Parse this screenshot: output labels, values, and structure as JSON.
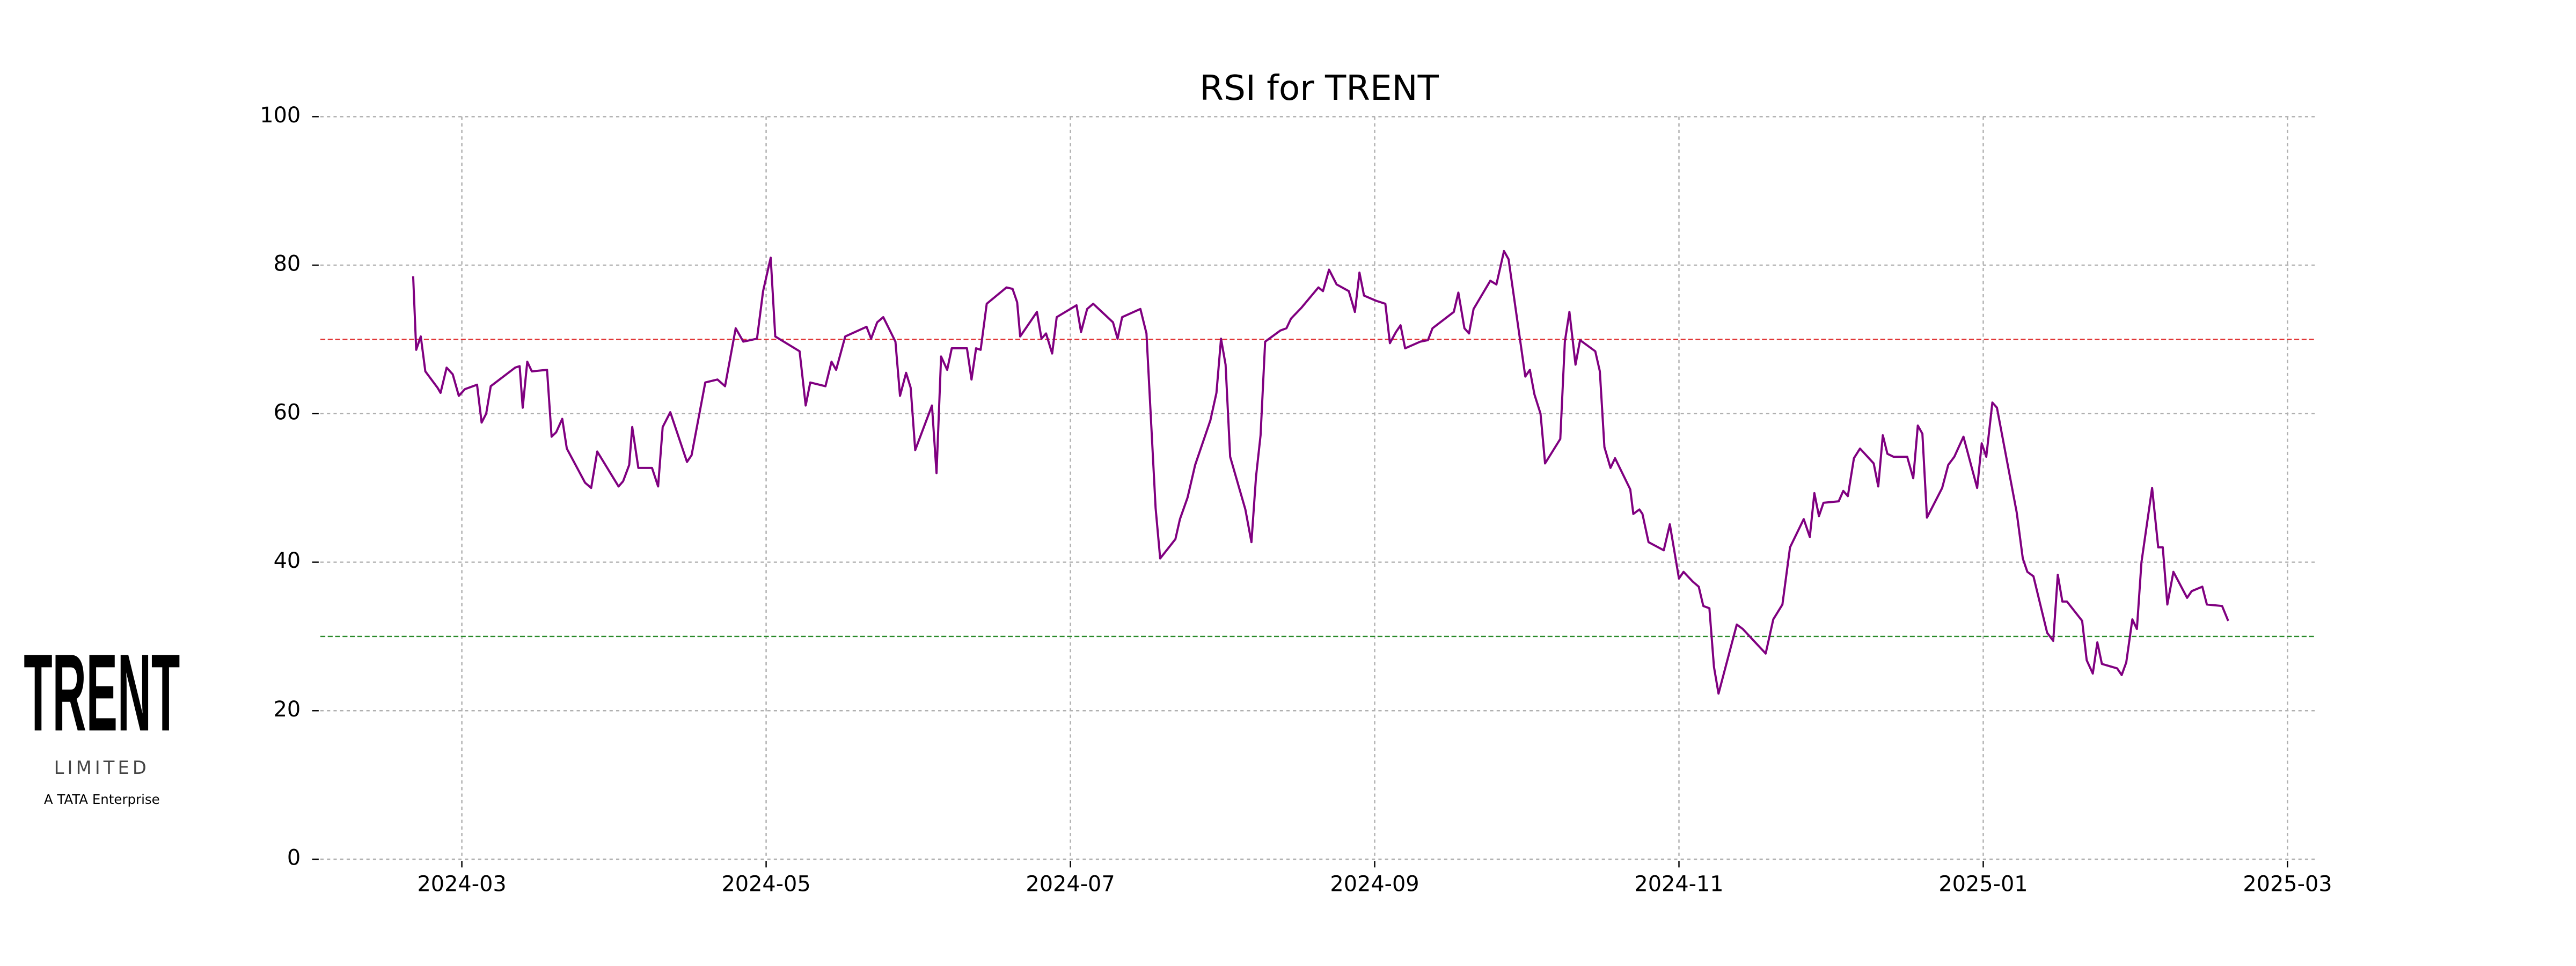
{
  "chart_data": {
    "type": "line",
    "title": "RSI for TRENT",
    "x": [
      1.68,
      1.7,
      1.73,
      1.76,
      1.84,
      1.86,
      1.9,
      1.94,
      1.98,
      2.02,
      2.1,
      2.13,
      2.16,
      2.19,
      2.35,
      2.38,
      2.4,
      2.43,
      2.46,
      2.56,
      2.59,
      2.62,
      2.66,
      2.69,
      2.81,
      2.85,
      2.89,
      3.03,
      3.06,
      3.1,
      3.12,
      3.16,
      3.25,
      3.29,
      3.32,
      3.37,
      3.48,
      3.51,
      3.6,
      3.68,
      3.73,
      3.8,
      3.85,
      3.94,
      3.98,
      4.03,
      4.06,
      4.22,
      4.26,
      4.29,
      4.39,
      4.43,
      4.46,
      4.52,
      4.66,
      4.69,
      4.73,
      4.77,
      4.85,
      4.88,
      4.92,
      4.95,
      4.98,
      5.09,
      5.12,
      5.15,
      5.19,
      5.22,
      5.32,
      5.35,
      5.38,
      5.41,
      5.45,
      5.58,
      5.62,
      5.65,
      5.67,
      5.78,
      5.81,
      5.84,
      5.88,
      5.91,
      6.04,
      6.07,
      6.11,
      6.15,
      6.28,
      6.31,
      6.34,
      6.46,
      6.5,
      6.56,
      6.59,
      6.69,
      6.72,
      6.77,
      6.82,
      6.92,
      6.96,
      6.99,
      7.02,
      7.05,
      7.15,
      7.19,
      7.22,
      7.25,
      7.28,
      7.38,
      7.42,
      7.45,
      7.52,
      7.63,
      7.66,
      7.7,
      7.75,
      7.83,
      7.87,
      7.9,
      7.93,
      8.01,
      8.07,
      8.1,
      8.14,
      8.17,
      8.2,
      8.3,
      8.35,
      8.38,
      8.52,
      8.55,
      8.59,
      8.62,
      8.65,
      8.76,
      8.8,
      8.85,
      8.88,
      8.99,
      9.02,
      9.05,
      9.09,
      9.12,
      9.22,
      9.25,
      9.28,
      9.32,
      9.35,
      9.45,
      9.48,
      9.51,
      9.55,
      9.58,
      9.68,
      9.7,
      9.74,
      9.76,
      9.8,
      9.9,
      9.94,
      10.0,
      10.03,
      10.09,
      10.13,
      10.16,
      10.2,
      10.23,
      10.26,
      10.38,
      10.42,
      10.57,
      10.62,
      10.68,
      10.73,
      10.82,
      10.86,
      10.89,
      10.92,
      10.95,
      11.05,
      11.08,
      11.11,
      11.15,
      11.19,
      11.28,
      11.31,
      11.34,
      11.37,
      11.41,
      11.5,
      11.54,
      11.57,
      11.6,
      11.63,
      11.73,
      11.77,
      11.81,
      11.87,
      11.9,
      11.96,
      11.99,
      12.02,
      12.06,
      12.09,
      12.22,
      12.26,
      12.29,
      12.33,
      12.42,
      12.46,
      12.49,
      12.52,
      12.55,
      12.65,
      12.68,
      12.72,
      12.75,
      12.78,
      12.88,
      12.91,
      12.94,
      12.98,
      13.01,
      13.04,
      13.11,
      13.15,
      13.18,
      13.21,
      13.25,
      13.34,
      13.37,
      13.44,
      13.47,
      13.57,
      13.61
    ],
    "values": [
      78.5,
      68.6,
      70.4,
      65.7,
      63.5,
      62.8,
      66.2,
      65.3,
      62.4,
      63.3,
      63.9,
      58.8,
      60.0,
      63.7,
      66.2,
      66.4,
      60.8,
      67.0,
      65.7,
      65.9,
      56.9,
      57.5,
      59.3,
      55.3,
      50.7,
      50.0,
      54.9,
      50.2,
      50.9,
      53.1,
      58.2,
      52.7,
      52.7,
      50.2,
      58.2,
      60.2,
      53.5,
      54.4,
      64.2,
      64.6,
      63.7,
      71.5,
      69.7,
      70.1,
      76.5,
      81.0,
      70.4,
      68.4,
      61.1,
      64.2,
      63.7,
      67.0,
      65.9,
      70.4,
      71.7,
      70.1,
      72.3,
      73.0,
      69.7,
      62.4,
      65.5,
      63.5,
      55.1,
      61.1,
      52.0,
      67.7,
      65.9,
      68.8,
      68.8,
      64.6,
      68.8,
      68.6,
      74.8,
      77.0,
      76.8,
      75.0,
      70.4,
      73.7,
      70.1,
      70.8,
      68.1,
      73.0,
      74.6,
      71.0,
      74.1,
      74.8,
      72.3,
      70.1,
      73.0,
      74.1,
      70.8,
      47.3,
      40.5,
      43.1,
      45.8,
      48.7,
      53.1,
      59.1,
      62.8,
      70.1,
      66.6,
      54.2,
      47.1,
      42.7,
      51.5,
      57.1,
      69.7,
      71.2,
      71.5,
      72.8,
      74.3,
      77.0,
      76.5,
      79.4,
      77.4,
      76.5,
      73.7,
      79.0,
      75.9,
      75.2,
      74.8,
      69.5,
      71.0,
      71.9,
      68.8,
      69.7,
      69.9,
      71.5,
      73.7,
      76.3,
      71.5,
      70.8,
      74.1,
      77.9,
      77.4,
      81.9,
      80.8,
      65.0,
      65.9,
      62.6,
      60.0,
      53.3,
      56.6,
      69.7,
      73.7,
      66.6,
      69.9,
      68.4,
      65.7,
      55.5,
      52.7,
      54.0,
      49.8,
      46.5,
      47.1,
      46.5,
      42.7,
      41.6,
      45.1,
      37.8,
      38.7,
      37.4,
      36.7,
      34.1,
      33.8,
      25.9,
      22.3,
      31.6,
      31.0,
      27.7,
      32.3,
      34.3,
      42.0,
      45.8,
      43.4,
      49.3,
      46.2,
      48.0,
      48.2,
      49.6,
      48.9,
      54.0,
      55.3,
      53.3,
      50.2,
      57.1,
      54.6,
      54.2,
      54.2,
      51.3,
      58.4,
      57.3,
      46.0,
      50.0,
      53.1,
      54.2,
      56.9,
      54.6,
      50.0,
      56.0,
      54.2,
      61.5,
      60.8,
      46.7,
      40.5,
      38.7,
      38.1,
      30.5,
      29.4,
      38.3,
      34.7,
      34.7,
      32.1,
      26.8,
      25.0,
      29.2,
      26.3,
      25.7,
      24.8,
      26.5,
      32.3,
      31.0,
      40.0,
      50.0,
      42.0,
      42.0,
      34.3,
      38.7,
      35.2,
      36.1,
      36.7,
      34.3,
      34.1,
      32.1
    ],
    "color": "#800080",
    "xlim": [
      1.07,
      14.19
    ],
    "xticks": [
      {
        "value": 2,
        "label": "2024-03"
      },
      {
        "value": 4,
        "label": "2024-05"
      },
      {
        "value": 6,
        "label": "2024-07"
      },
      {
        "value": 8,
        "label": "2024-09"
      },
      {
        "value": 10,
        "label": "2024-11"
      },
      {
        "value": 12,
        "label": "2025-01"
      },
      {
        "value": 14,
        "label": "2025-03"
      }
    ],
    "ylim": [
      0,
      100
    ],
    "yticks": [
      0,
      20,
      40,
      60,
      80,
      100
    ],
    "grid": true,
    "hlines": [
      {
        "value": 70,
        "color": "#e03030"
      },
      {
        "value": 30,
        "color": "#2a8a2a"
      }
    ]
  },
  "logo": {
    "name": "TRENT",
    "subtitle": "LIMITED",
    "tagline": "A TATA Enterprise"
  }
}
